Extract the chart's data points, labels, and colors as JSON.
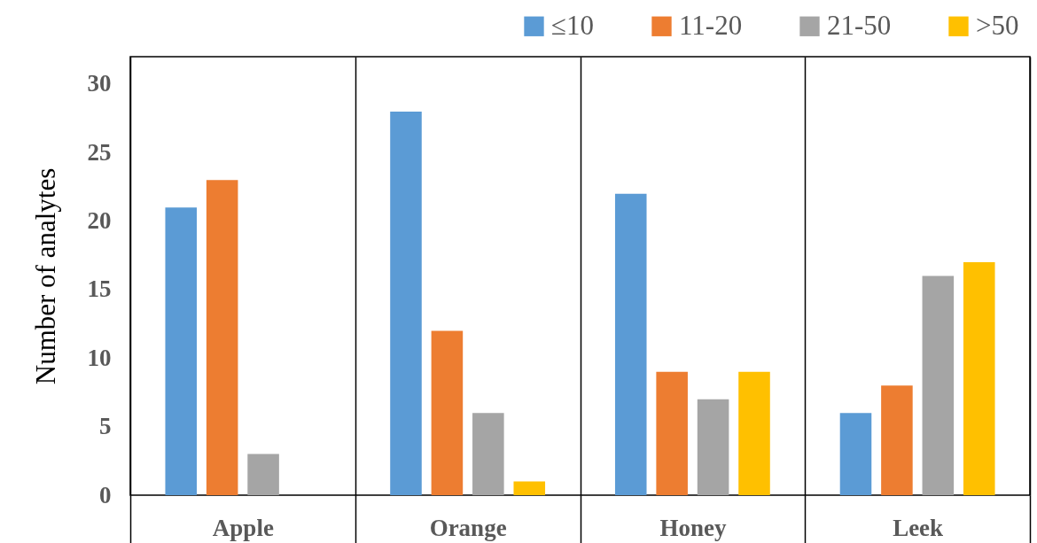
{
  "chart_data": {
    "type": "bar",
    "ylabel": "Number of analytes",
    "categories": [
      "Apple",
      "Orange",
      "Honey",
      "Leek"
    ],
    "series": [
      {
        "name": "≤10",
        "color": "#5b9bd5",
        "values": [
          21,
          28,
          22,
          6
        ]
      },
      {
        "name": "11-20",
        "color": "#ed7d31",
        "values": [
          23,
          12,
          9,
          8
        ]
      },
      {
        "name": "21-50",
        "color": "#a5a5a5",
        "values": [
          3,
          6,
          7,
          16
        ]
      },
      {
        "name": ">50",
        "color": "#ffc000",
        "values": [
          null,
          1,
          9,
          17
        ]
      }
    ],
    "ylim": [
      0,
      32
    ],
    "yticks": [
      0,
      5,
      10,
      15,
      20,
      25,
      30
    ],
    "grid": "x",
    "legend": "top right"
  }
}
